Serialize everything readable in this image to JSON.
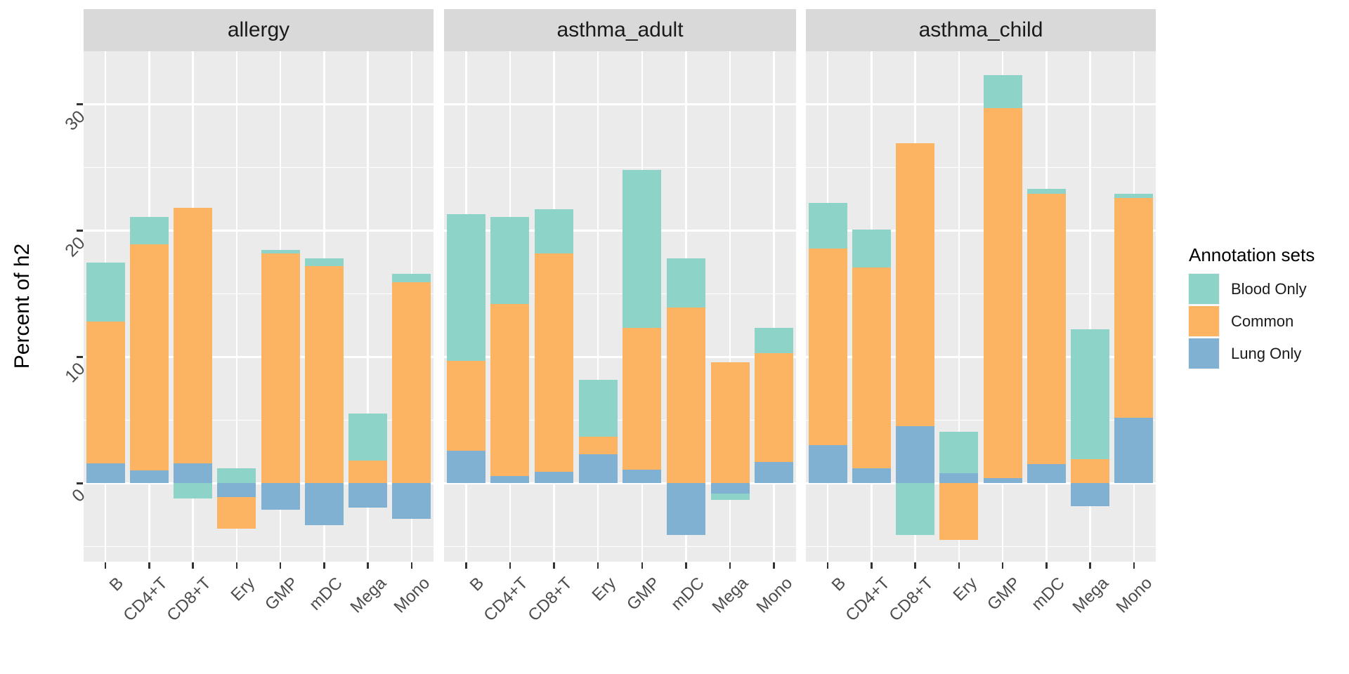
{
  "chart_data": {
    "type": "bar",
    "stacked": true,
    "title": "",
    "ylabel": "Percent of h2",
    "xlabel": "",
    "categories": [
      "B",
      "CD4+T",
      "CD8+T",
      "Ery",
      "GMP",
      "mDC",
      "Mega",
      "Mono"
    ],
    "y_axis": {
      "major_ticks": [
        0,
        10,
        20,
        30
      ],
      "major_tick_labels": [
        "0",
        "10",
        "20",
        "30"
      ],
      "minor_ticks": [
        -5,
        5,
        15,
        25
      ],
      "ylim": [
        -6.2,
        34.2
      ],
      "grid": "on"
    },
    "stack_order": [
      "Lung Only",
      "Common",
      "Blood Only"
    ],
    "series_colors": {
      "Blood Only": "#8DD3C7",
      "Common": "#FDB462",
      "Lung Only": "#80B1D3"
    },
    "facets": [
      {
        "label": "allergy",
        "series": [
          {
            "name": "Lung Only",
            "values": [
              1.6,
              1.0,
              1.6,
              -1.1,
              -2.1,
              -3.3,
              -1.9,
              -2.8
            ]
          },
          {
            "name": "Common",
            "values": [
              11.2,
              17.9,
              20.2,
              -2.5,
              18.2,
              17.2,
              1.8,
              15.9
            ]
          },
          {
            "name": "Blood Only",
            "values": [
              4.7,
              2.2,
              -1.2,
              1.2,
              0.3,
              0.6,
              3.7,
              0.7
            ]
          }
        ]
      },
      {
        "label": "asthma_adult",
        "series": [
          {
            "name": "Lung Only",
            "values": [
              2.6,
              0.6,
              0.9,
              2.3,
              1.1,
              -4.1,
              -0.8,
              1.7
            ]
          },
          {
            "name": "Common",
            "values": [
              7.1,
              13.6,
              17.3,
              1.4,
              11.2,
              13.9,
              9.6,
              8.6
            ]
          },
          {
            "name": "Blood Only",
            "values": [
              11.6,
              6.9,
              3.5,
              4.5,
              12.5,
              3.9,
              -0.5,
              2.0
            ]
          }
        ]
      },
      {
        "label": "asthma_child",
        "series": [
          {
            "name": "Lung Only",
            "values": [
              3.0,
              1.2,
              4.5,
              0.8,
              0.4,
              1.5,
              -1.8,
              5.2
            ]
          },
          {
            "name": "Common",
            "values": [
              15.6,
              15.9,
              22.4,
              -4.5,
              29.3,
              21.4,
              1.9,
              17.4
            ]
          },
          {
            "name": "Blood Only",
            "values": [
              3.6,
              3.0,
              -4.1,
              3.3,
              2.6,
              0.4,
              10.3,
              0.3
            ]
          }
        ]
      }
    ],
    "legend": {
      "title": "Annotation sets",
      "position": "right",
      "entries": [
        {
          "label": "Blood Only",
          "color": "#8DD3C7"
        },
        {
          "label": "Common",
          "color": "#FDB462"
        },
        {
          "label": "Lung Only",
          "color": "#80B1D3"
        }
      ]
    }
  }
}
